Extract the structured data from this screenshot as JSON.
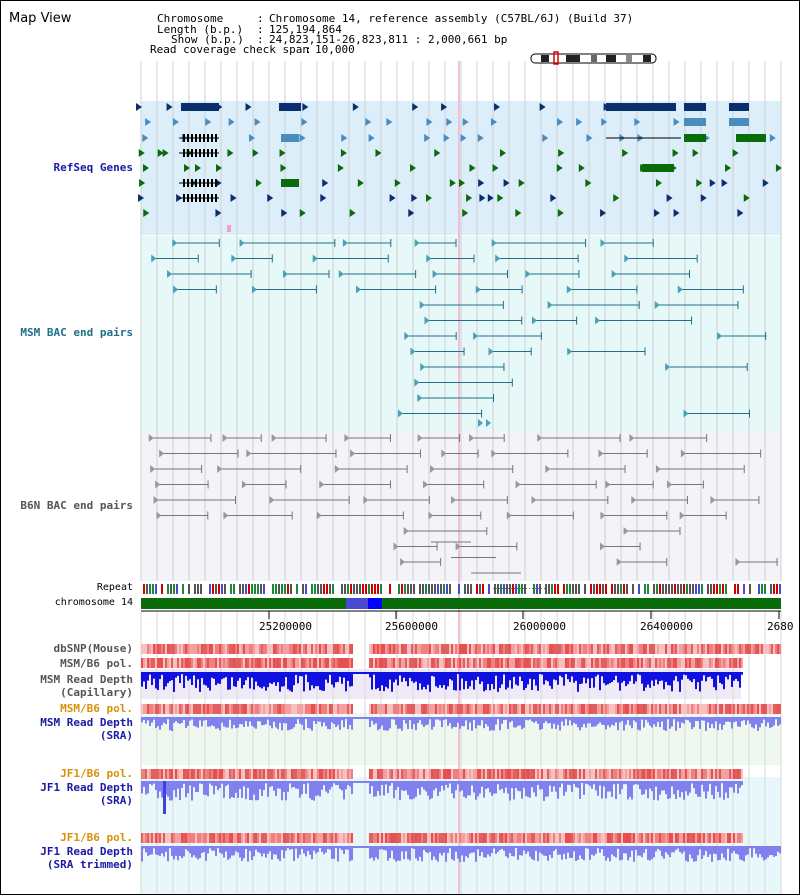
{
  "app": {
    "title": "Map View"
  },
  "header": {
    "chromosome_label": "Chromosome",
    "chromosome_value": "Chromosome 14, reference assembly (C57BL/6J) (Build 37)",
    "length_label": "Length (b.p.)",
    "length_value": "125,194,864",
    "show_label": "Show (b.p.)",
    "show_value": "24,823,151-26,823,811 : 2,000,661 bp",
    "coverage_label": "Read coverage check span",
    "coverage_value": "10,000"
  },
  "tracks": {
    "refseq": "RefSeq Genes",
    "msm_bac": "MSM BAC end pairs",
    "b6n_bac": "B6N BAC end pairs",
    "repeat": "Repeat",
    "chromosome": "chromosome 14",
    "dbsnp": "dbSNP(Mouse)",
    "msm_b6_pol": "MSM/B6 pol.",
    "msm_read_depth_cap": "MSM Read Depth\n(Capillary)",
    "msm_b6_pol_2": "MSM/B6 pol.",
    "msm_read_depth_sra": "MSM Read Depth\n(SRA)",
    "jf1_b6_pol": "JF1/B6 pol.",
    "jf1_read_depth_sra": "JF1 Read Depth\n(SRA)",
    "jf1_b6_pol_2": "JF1/B6 pol.",
    "jf1_read_depth_trimmed": "JF1 Read Depth\n(SRA trimmed)"
  },
  "axis": {
    "ticks": [
      "25200000",
      "25600000",
      "26000000",
      "26400000",
      "2680"
    ]
  },
  "colors": {
    "refseq_bg": "#dbeefa",
    "msm_bg": "#e6f8f8",
    "b6n_bg": "#f3f3fa",
    "refseq_dark": "#0a2f6e",
    "refseq_mid": "#4a8cbe",
    "refseq_green": "#0a6b0a",
    "msm_line": "#1f6f8b",
    "b6n_line": "#777777",
    "label_blue": "#1a1aa8",
    "label_teal": "#1f6f8b",
    "label_gray": "#555555",
    "label_orange": "#d8920a",
    "chromosome_green": "#0a6b0a"
  }
}
